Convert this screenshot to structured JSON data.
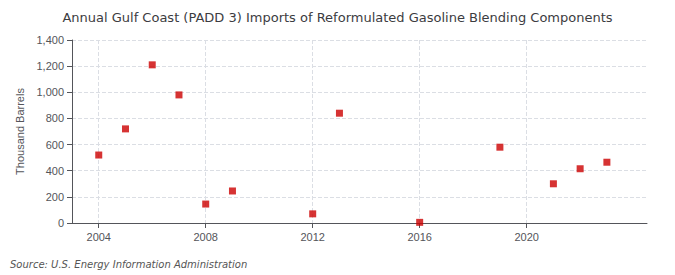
{
  "chart_data": {
    "type": "scatter",
    "title": "Annual Gulf Coast (PADD 3) Imports of Reformulated Gasoline Blending Components",
    "ylabel": "Thousand Barrels",
    "annotation": "Source: U.S. Energy Information Administration",
    "x": [
      2004,
      2005,
      2006,
      2007,
      2008,
      2009,
      2012,
      2013,
      2016,
      2019,
      2021,
      2022,
      2023
    ],
    "values": [
      520,
      720,
      1210,
      980,
      145,
      245,
      70,
      840,
      5,
      580,
      300,
      415,
      465
    ],
    "color": "#cc0000",
    "marker": "square",
    "xlim": [
      2003.0,
      2024.5
    ],
    "xticks": [
      2004,
      2008,
      2012,
      2016,
      2020
    ],
    "ylim": [
      0,
      1400
    ],
    "yticks": [
      0,
      200,
      400,
      600,
      800,
      {
        "value": 1000,
        "label": "1,000"
      },
      {
        "value": 1200,
        "label": "1,200"
      },
      {
        "value": 1400,
        "label": "1,400"
      }
    ],
    "grid": true
  }
}
